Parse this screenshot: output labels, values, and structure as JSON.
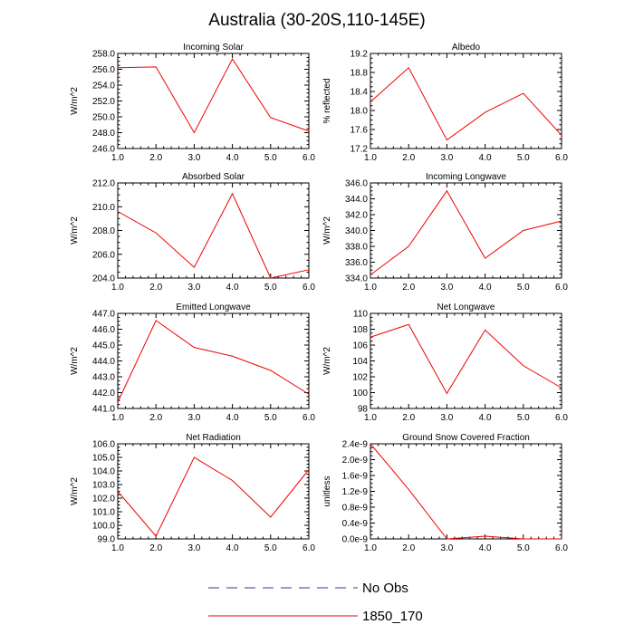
{
  "page_title": "Australia (30-20S,110-145E)",
  "legend": [
    {
      "label": "No Obs",
      "color": "#3333aa",
      "style": "dashed"
    },
    {
      "label": "1850_170",
      "color": "#ee0000",
      "style": "solid"
    }
  ],
  "chart_data": [
    {
      "type": "line",
      "title": "Incoming Solar",
      "ylabel": "W/m^2",
      "x": [
        1,
        2,
        3,
        4,
        5,
        6
      ],
      "xlim": [
        1,
        6
      ],
      "xticks": [
        "1.0",
        "2.0",
        "3.0",
        "4.0",
        "5.0",
        "6.0"
      ],
      "ylim": [
        246,
        258
      ],
      "yticks": [
        "246.0",
        "248.0",
        "250.0",
        "252.0",
        "254.0",
        "256.0",
        "258.0"
      ],
      "series": [
        {
          "values": [
            256.2,
            256.3,
            248.0,
            257.3,
            249.9,
            248.2
          ]
        }
      ]
    },
    {
      "type": "line",
      "title": "Albedo",
      "ylabel": "% reflected",
      "x": [
        1,
        2,
        3,
        4,
        5,
        6
      ],
      "xlim": [
        1,
        6
      ],
      "xticks": [
        "1.0",
        "2.0",
        "3.0",
        "4.0",
        "5.0",
        "6.0"
      ],
      "ylim": [
        17.2,
        19.2
      ],
      "yticks": [
        "17.2",
        "17.6",
        "18.0",
        "18.4",
        "18.8",
        "19.2"
      ],
      "series": [
        {
          "values": [
            18.18,
            18.9,
            17.38,
            17.96,
            18.36,
            17.48
          ]
        }
      ]
    },
    {
      "type": "line",
      "title": "Absorbed Solar",
      "ylabel": "W/m^2",
      "x": [
        1,
        2,
        3,
        4,
        5,
        6
      ],
      "xlim": [
        1,
        6
      ],
      "xticks": [
        "1.0",
        "2.0",
        "3.0",
        "4.0",
        "5.0",
        "6.0"
      ],
      "ylim": [
        204,
        212
      ],
      "yticks": [
        "204.0",
        "206.0",
        "208.0",
        "210.0",
        "212.0"
      ],
      "series": [
        {
          "values": [
            209.6,
            207.8,
            204.9,
            211.1,
            204.0,
            204.7
          ]
        }
      ]
    },
    {
      "type": "line",
      "title": "Incoming Longwave",
      "ylabel": "W/m^2",
      "x": [
        1,
        2,
        3,
        4,
        5,
        6
      ],
      "xlim": [
        1,
        6
      ],
      "xticks": [
        "1.0",
        "2.0",
        "3.0",
        "4.0",
        "5.0",
        "6.0"
      ],
      "ylim": [
        334,
        346
      ],
      "yticks": [
        "334.0",
        "336.0",
        "338.0",
        "340.0",
        "342.0",
        "344.0",
        "346.0"
      ],
      "series": [
        {
          "values": [
            334.4,
            338.0,
            345.0,
            336.5,
            340.0,
            341.2
          ]
        }
      ]
    },
    {
      "type": "line",
      "title": "Emitted Longwave",
      "ylabel": "W/m^2",
      "x": [
        1,
        2,
        3,
        4,
        5,
        6
      ],
      "xlim": [
        1,
        6
      ],
      "xticks": [
        "1.0",
        "2.0",
        "3.0",
        "4.0",
        "5.0",
        "6.0"
      ],
      "ylim": [
        441,
        447
      ],
      "yticks": [
        "441.0",
        "442.0",
        "443.0",
        "444.0",
        "445.0",
        "446.0",
        "447.0"
      ],
      "series": [
        {
          "values": [
            441.4,
            446.55,
            444.85,
            444.3,
            443.4,
            441.9
          ]
        }
      ]
    },
    {
      "type": "line",
      "title": "Net Longwave",
      "ylabel": "W/m^2",
      "x": [
        1,
        2,
        3,
        4,
        5,
        6
      ],
      "xlim": [
        1,
        6
      ],
      "xticks": [
        "1.0",
        "2.0",
        "3.0",
        "4.0",
        "5.0",
        "6.0"
      ],
      "ylim": [
        98,
        110
      ],
      "yticks": [
        "98",
        "100",
        "102",
        "104",
        "106",
        "108",
        "110"
      ],
      "series": [
        {
          "values": [
            107.0,
            108.6,
            99.9,
            107.9,
            103.4,
            100.6
          ]
        }
      ]
    },
    {
      "type": "line",
      "title": "Net Radiation",
      "ylabel": "W/m^2",
      "x": [
        1,
        2,
        3,
        4,
        5,
        6
      ],
      "xlim": [
        1,
        6
      ],
      "xticks": [
        "1.0",
        "2.0",
        "3.0",
        "4.0",
        "5.0",
        "6.0"
      ],
      "ylim": [
        99,
        106
      ],
      "yticks": [
        "99.0",
        "100.0",
        "101.0",
        "102.0",
        "103.0",
        "104.0",
        "105.0",
        "106.0"
      ],
      "series": [
        {
          "values": [
            102.5,
            99.2,
            105.0,
            103.3,
            100.6,
            104.1
          ]
        }
      ]
    },
    {
      "type": "line",
      "title": "Ground Snow Covered Fraction",
      "ylabel": "unitless",
      "x": [
        1,
        2,
        3,
        4,
        5,
        6
      ],
      "xlim": [
        1,
        6
      ],
      "xticks": [
        "1.0",
        "2.0",
        "3.0",
        "4.0",
        "5.0",
        "6.0"
      ],
      "ylim": [
        0,
        2.4e-09
      ],
      "yticks": [
        "0.0e-9",
        "0.4e-9",
        "0.8e-9",
        "1.2e-9",
        "1.6e-9",
        "2.0e-9",
        "2.4e-9"
      ],
      "series": [
        {
          "values": [
            2.4e-09,
            1.25e-09,
            0.0,
            7e-11,
            0.0,
            0.0
          ]
        }
      ]
    }
  ]
}
